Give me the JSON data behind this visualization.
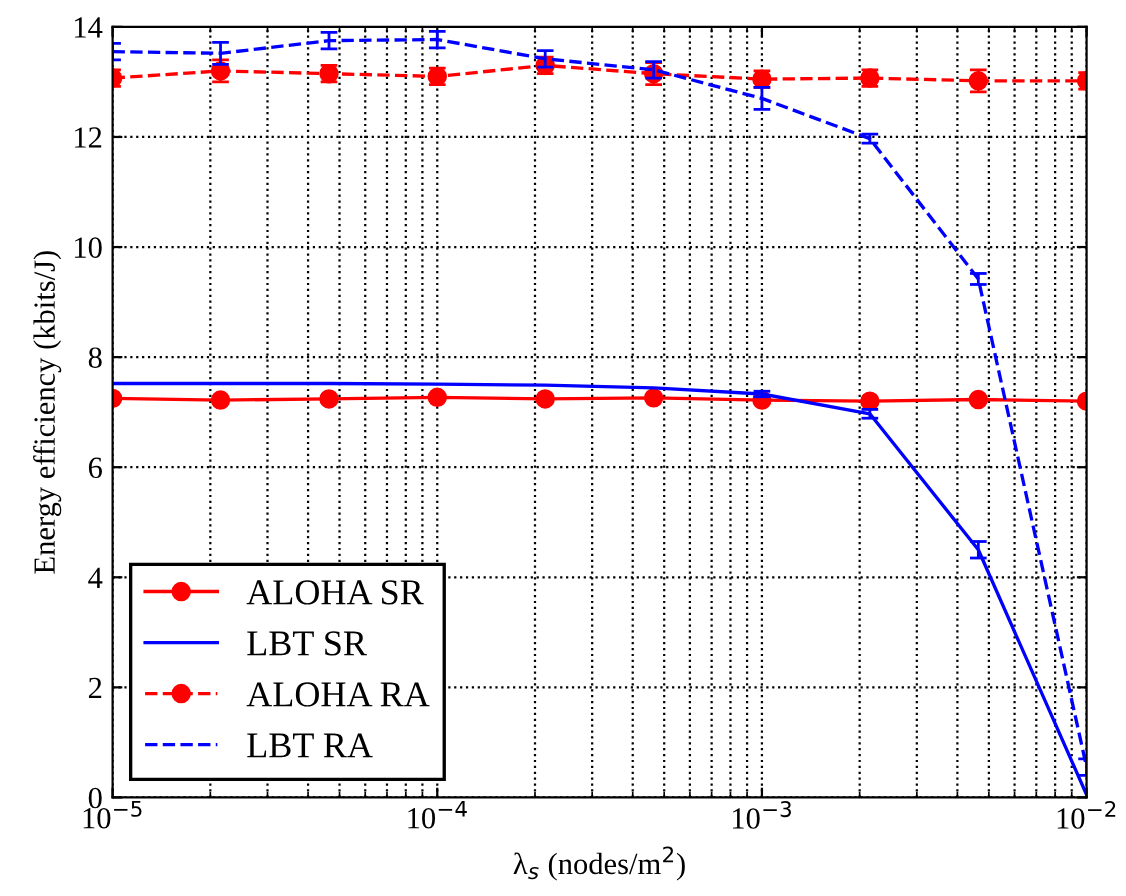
{
  "chart_data": {
    "type": "line",
    "xlabel": "λ$_{s}$ (nodes/m$^{2}$)",
    "ylabel": "Energy efficiency (kbits/J)",
    "x": [
      1e-05,
      2.15e-05,
      4.64e-05,
      0.0001,
      0.000215,
      0.000464,
      0.001,
      0.00215,
      0.00464,
      0.01
    ],
    "log": "x",
    "xlim": [
      1e-05,
      0.01
    ],
    "xticks": [
      {
        "value": 1e-05,
        "label": "10$^{−5}$"
      },
      {
        "value": 0.0001,
        "label": "10$^{−4}$"
      },
      {
        "value": 0.001,
        "label": "10$^{−3}$"
      },
      {
        "value": 0.01,
        "label": "10$^{−2}$"
      }
    ],
    "ylim": [
      0,
      14
    ],
    "yticks": [
      0,
      2,
      4,
      6,
      8,
      10,
      12,
      14
    ],
    "grid": true,
    "legend": "bottom left",
    "series": [
      {
        "name": "ALOHA SR",
        "color": "#ff0000",
        "marker": "circle",
        "line_style": "solid",
        "values": [
          7.25,
          7.22,
          7.24,
          7.27,
          7.24,
          7.26,
          7.22,
          7.2,
          7.23,
          7.2
        ]
      },
      {
        "name": "LBT SR",
        "color": "#0000ff",
        "marker": "none",
        "line_style": "solid",
        "values": [
          7.52,
          7.52,
          7.52,
          7.51,
          7.49,
          7.44,
          7.33,
          6.97,
          4.5,
          0.05
        ],
        "errors": [
          null,
          null,
          null,
          null,
          null,
          null,
          0.05,
          0.08,
          0.15,
          null
        ]
      },
      {
        "name": "ALOHA RA",
        "color": "#ff0000",
        "marker": "circle",
        "line_style": "dashed",
        "values": [
          13.07,
          13.2,
          13.15,
          13.1,
          13.3,
          13.15,
          13.05,
          13.07,
          13.02,
          13.02
        ],
        "errors": [
          0.15,
          0.2,
          0.15,
          0.15,
          0.15,
          0.2,
          0.15,
          0.15,
          0.2,
          0.15
        ]
      },
      {
        "name": "LBT RA",
        "color": "#0000ff",
        "marker": "none",
        "line_style": "dashed",
        "values": [
          13.55,
          13.52,
          13.75,
          13.77,
          13.42,
          13.22,
          12.7,
          11.97,
          9.42,
          0.55
        ],
        "errors": [
          0.15,
          0.2,
          0.15,
          0.15,
          0.15,
          0.15,
          0.2,
          0.08,
          0.1,
          0.15
        ]
      }
    ]
  }
}
